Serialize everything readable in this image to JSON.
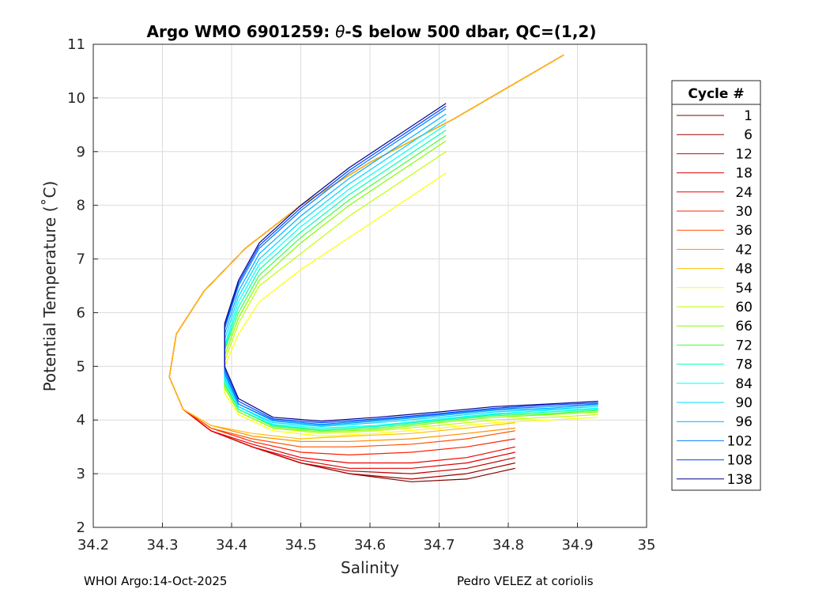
{
  "footer": {
    "left": "WHOI Argo:14-Oct-2025",
    "right": "Pedro VELEZ at coriolis"
  },
  "chart_data": {
    "type": "line",
    "title_prefix": "Argo WMO 6901259: ",
    "title_symbol": "θ",
    "title_suffix": "-S below 500 dbar,  QC=(1,2)",
    "xlabel": "Salinity",
    "ylabel": "Potential Temperature (˚C)",
    "xlim": [
      34.2,
      35.0
    ],
    "ylim": [
      2,
      11
    ],
    "xticks": [
      "34.2",
      "34.3",
      "34.4",
      "34.5",
      "34.6",
      "34.7",
      "34.8",
      "34.9",
      "35"
    ],
    "yticks": [
      "2",
      "3",
      "4",
      "5",
      "6",
      "7",
      "8",
      "9",
      "10",
      "11"
    ],
    "grid": true,
    "legend_title": "Cycle #",
    "legend_position": "right-outside",
    "series": [
      {
        "name": "1",
        "color": "#7f0000",
        "salinity": [
          34.88,
          34.8,
          34.72,
          34.6,
          34.5,
          34.42,
          34.36,
          34.32,
          34.31,
          34.33,
          34.37,
          34.43,
          34.5,
          34.57,
          34.66,
          34.74,
          34.81
        ],
        "temperature": [
          10.8,
          10.2,
          9.6,
          8.8,
          8.0,
          7.2,
          6.4,
          5.6,
          4.8,
          4.2,
          3.8,
          3.5,
          3.2,
          3.0,
          2.85,
          2.9,
          3.1
        ]
      },
      {
        "name": "6",
        "color": "#a00000",
        "salinity": [
          34.88,
          34.8,
          34.72,
          34.6,
          34.5,
          34.42,
          34.36,
          34.32,
          34.31,
          34.33,
          34.37,
          34.43,
          34.5,
          34.57,
          34.66,
          34.74,
          34.81
        ],
        "temperature": [
          10.8,
          10.2,
          9.6,
          8.8,
          8.0,
          7.2,
          6.4,
          5.6,
          4.8,
          4.2,
          3.8,
          3.5,
          3.2,
          3.0,
          2.9,
          3.0,
          3.2
        ]
      },
      {
        "name": "12",
        "color": "#c00000",
        "salinity": [
          34.88,
          34.8,
          34.72,
          34.6,
          34.5,
          34.42,
          34.36,
          34.32,
          34.31,
          34.33,
          34.37,
          34.43,
          34.5,
          34.57,
          34.66,
          34.74,
          34.81
        ],
        "temperature": [
          10.8,
          10.2,
          9.6,
          8.8,
          8.0,
          7.2,
          6.4,
          5.6,
          4.8,
          4.2,
          3.8,
          3.5,
          3.2,
          3.05,
          3.0,
          3.1,
          3.3
        ]
      },
      {
        "name": "18",
        "color": "#e00000",
        "salinity": [
          34.88,
          34.8,
          34.72,
          34.6,
          34.5,
          34.42,
          34.36,
          34.32,
          34.31,
          34.33,
          34.37,
          34.43,
          34.5,
          34.57,
          34.66,
          34.74,
          34.81
        ],
        "temperature": [
          10.8,
          10.2,
          9.6,
          8.8,
          8.0,
          7.2,
          6.4,
          5.6,
          4.8,
          4.2,
          3.8,
          3.5,
          3.25,
          3.1,
          3.1,
          3.2,
          3.4
        ]
      },
      {
        "name": "24",
        "color": "#f00000",
        "salinity": [
          34.88,
          34.8,
          34.72,
          34.6,
          34.5,
          34.42,
          34.36,
          34.32,
          34.31,
          34.33,
          34.37,
          34.43,
          34.5,
          34.57,
          34.66,
          34.74,
          34.81
        ],
        "temperature": [
          10.8,
          10.2,
          9.6,
          8.8,
          8.0,
          7.2,
          6.4,
          5.6,
          4.8,
          4.2,
          3.8,
          3.55,
          3.3,
          3.2,
          3.2,
          3.3,
          3.5
        ]
      },
      {
        "name": "30",
        "color": "#ff2000",
        "salinity": [
          34.88,
          34.8,
          34.72,
          34.6,
          34.5,
          34.42,
          34.36,
          34.32,
          34.31,
          34.33,
          34.37,
          34.43,
          34.5,
          34.57,
          34.66,
          34.74,
          34.81
        ],
        "temperature": [
          10.8,
          10.2,
          9.6,
          8.8,
          8.0,
          7.2,
          6.4,
          5.6,
          4.8,
          4.2,
          3.85,
          3.6,
          3.4,
          3.35,
          3.4,
          3.5,
          3.65
        ]
      },
      {
        "name": "36",
        "color": "#ff5000",
        "salinity": [
          34.88,
          34.8,
          34.72,
          34.6,
          34.5,
          34.42,
          34.36,
          34.32,
          34.31,
          34.33,
          34.37,
          34.43,
          34.5,
          34.57,
          34.66,
          34.74,
          34.81
        ],
        "temperature": [
          10.8,
          10.2,
          9.6,
          8.8,
          8.0,
          7.2,
          6.4,
          5.6,
          4.8,
          4.2,
          3.85,
          3.65,
          3.5,
          3.5,
          3.55,
          3.65,
          3.8
        ]
      },
      {
        "name": "42",
        "color": "#ff9000",
        "salinity": [
          34.88,
          34.8,
          34.72,
          34.6,
          34.5,
          34.42,
          34.36,
          34.32,
          34.31,
          34.33,
          34.37,
          34.43,
          34.5,
          34.57,
          34.66,
          34.74,
          34.81
        ],
        "temperature": [
          10.8,
          10.2,
          9.6,
          8.8,
          8.0,
          7.2,
          6.4,
          5.6,
          4.8,
          4.2,
          3.9,
          3.7,
          3.6,
          3.6,
          3.65,
          3.75,
          3.85
        ]
      },
      {
        "name": "48",
        "color": "#ffc000",
        "salinity": [
          34.88,
          34.8,
          34.72,
          34.6,
          34.5,
          34.42,
          34.36,
          34.32,
          34.31,
          34.33,
          34.37,
          34.43,
          34.5,
          34.57,
          34.66,
          34.74,
          34.81
        ],
        "temperature": [
          10.8,
          10.2,
          9.6,
          8.8,
          8.0,
          7.2,
          6.4,
          5.6,
          4.8,
          4.2,
          3.9,
          3.75,
          3.65,
          3.7,
          3.75,
          3.85,
          3.95
        ]
      },
      {
        "name": "54",
        "color": "#ffff00",
        "salinity": [
          34.71,
          34.64,
          34.57,
          34.5,
          34.44,
          34.41,
          34.39,
          34.39,
          34.41,
          34.46,
          34.53,
          34.61,
          34.7,
          34.78,
          34.86,
          34.93
        ],
        "temperature": [
          8.6,
          8.0,
          7.4,
          6.8,
          6.2,
          5.6,
          5.0,
          4.5,
          4.1,
          3.8,
          3.7,
          3.75,
          3.85,
          3.95,
          4.0,
          4.05
        ]
      },
      {
        "name": "60",
        "color": "#c0ff00",
        "salinity": [
          34.71,
          34.64,
          34.57,
          34.5,
          34.44,
          34.41,
          34.39,
          34.39,
          34.41,
          34.46,
          34.53,
          34.61,
          34.7,
          34.78,
          34.86,
          34.93
        ],
        "temperature": [
          9.0,
          8.4,
          7.8,
          7.1,
          6.5,
          5.8,
          5.1,
          4.6,
          4.15,
          3.85,
          3.75,
          3.8,
          3.9,
          4.0,
          4.05,
          4.1
        ]
      },
      {
        "name": "66",
        "color": "#80ff00",
        "salinity": [
          34.71,
          34.64,
          34.57,
          34.5,
          34.44,
          34.41,
          34.39,
          34.39,
          34.41,
          34.46,
          34.53,
          34.61,
          34.7,
          34.78,
          34.86,
          34.93
        ],
        "temperature": [
          9.2,
          8.6,
          8.0,
          7.3,
          6.6,
          5.9,
          5.2,
          4.6,
          4.15,
          3.85,
          3.78,
          3.82,
          3.95,
          4.05,
          4.1,
          4.15
        ]
      },
      {
        "name": "72",
        "color": "#40ff40",
        "salinity": [
          34.71,
          34.64,
          34.57,
          34.5,
          34.44,
          34.41,
          34.39,
          34.39,
          34.41,
          34.46,
          34.53,
          34.61,
          34.7,
          34.78,
          34.86,
          34.93
        ],
        "temperature": [
          9.3,
          8.7,
          8.1,
          7.4,
          6.7,
          6.0,
          5.3,
          4.65,
          4.2,
          3.88,
          3.8,
          3.85,
          3.98,
          4.08,
          4.12,
          4.18
        ]
      },
      {
        "name": "78",
        "color": "#00ffb0",
        "salinity": [
          34.71,
          34.64,
          34.57,
          34.5,
          34.44,
          34.41,
          34.39,
          34.39,
          34.41,
          34.46,
          34.53,
          34.61,
          34.7,
          34.78,
          34.86,
          34.93
        ],
        "temperature": [
          9.4,
          8.8,
          8.2,
          7.5,
          6.8,
          6.1,
          5.35,
          4.7,
          4.2,
          3.9,
          3.82,
          3.88,
          4.0,
          4.1,
          4.15,
          4.2
        ]
      },
      {
        "name": "84",
        "color": "#00ffff",
        "salinity": [
          34.71,
          34.64,
          34.57,
          34.5,
          34.44,
          34.41,
          34.39,
          34.39,
          34.41,
          34.46,
          34.53,
          34.61,
          34.7,
          34.78,
          34.86,
          34.93
        ],
        "temperature": [
          9.5,
          8.9,
          8.3,
          7.6,
          6.9,
          6.2,
          5.4,
          4.75,
          4.25,
          3.92,
          3.85,
          3.9,
          4.02,
          4.12,
          4.18,
          4.22
        ]
      },
      {
        "name": "90",
        "color": "#00d8ff",
        "salinity": [
          34.71,
          34.64,
          34.57,
          34.5,
          34.44,
          34.41,
          34.39,
          34.39,
          34.41,
          34.46,
          34.53,
          34.61,
          34.7,
          34.78,
          34.86,
          34.93
        ],
        "temperature": [
          9.6,
          9.0,
          8.4,
          7.7,
          7.0,
          6.3,
          5.5,
          4.8,
          4.25,
          3.95,
          3.88,
          3.95,
          4.05,
          4.15,
          4.2,
          4.25
        ]
      },
      {
        "name": "96",
        "color": "#00b0ff",
        "salinity": [
          34.71,
          34.64,
          34.57,
          34.5,
          34.44,
          34.41,
          34.39,
          34.39,
          34.41,
          34.46,
          34.53,
          34.61,
          34.7,
          34.78,
          34.86,
          34.93
        ],
        "temperature": [
          9.7,
          9.1,
          8.5,
          7.8,
          7.1,
          6.4,
          5.6,
          4.85,
          4.3,
          3.98,
          3.9,
          3.98,
          4.08,
          4.18,
          4.22,
          4.28
        ]
      },
      {
        "name": "102",
        "color": "#0080ff",
        "salinity": [
          34.71,
          34.64,
          34.57,
          34.5,
          34.44,
          34.41,
          34.39,
          34.39,
          34.41,
          34.46,
          34.53,
          34.61,
          34.7,
          34.78,
          34.86,
          34.93
        ],
        "temperature": [
          9.8,
          9.2,
          8.6,
          7.9,
          7.2,
          6.5,
          5.7,
          4.9,
          4.3,
          4.0,
          3.92,
          4.0,
          4.1,
          4.2,
          4.25,
          4.3
        ]
      },
      {
        "name": "108",
        "color": "#0040ff",
        "salinity": [
          34.71,
          34.64,
          34.57,
          34.5,
          34.44,
          34.41,
          34.39,
          34.39,
          34.41,
          34.46,
          34.53,
          34.61,
          34.7,
          34.78,
          34.86,
          34.93
        ],
        "temperature": [
          9.85,
          9.25,
          8.65,
          7.95,
          7.25,
          6.55,
          5.75,
          4.95,
          4.35,
          4.02,
          3.95,
          4.02,
          4.12,
          4.22,
          4.28,
          4.32
        ]
      },
      {
        "name": "138",
        "color": "#00008f",
        "salinity": [
          34.71,
          34.64,
          34.57,
          34.5,
          34.44,
          34.41,
          34.39,
          34.39,
          34.41,
          34.46,
          34.53,
          34.61,
          34.7,
          34.78,
          34.86,
          34.93
        ],
        "temperature": [
          9.9,
          9.3,
          8.7,
          8.0,
          7.3,
          6.6,
          5.8,
          5.0,
          4.4,
          4.05,
          3.98,
          4.05,
          4.15,
          4.25,
          4.3,
          4.35
        ]
      }
    ]
  }
}
